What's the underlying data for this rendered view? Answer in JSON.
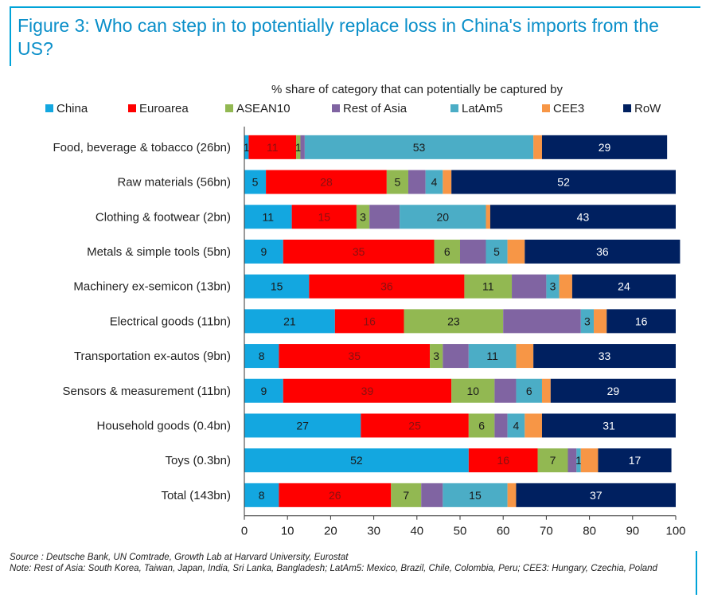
{
  "title": "Figure 3: Who can step in to potentially replace loss in China's imports from the US?",
  "source": "Source : Deutsche Bank, UN Comtrade, Growth Lab at Harvard University, Eurostat",
  "note": "Note: Rest of Asia: South Korea, Taiwan, Japan, India, Sri Lanka, Bangladesh; LatAm5: Mexico, Brazil, Chile, Colombia, Peru; CEE3: Hungary, Czechia, Poland",
  "chart_data": {
    "type": "bar",
    "orientation": "horizontal",
    "stacked": true,
    "subtitle": "% share of category that can potentially be captured by",
    "legend_position": "top",
    "xlim": [
      0,
      100
    ],
    "xticks": [
      0,
      10,
      20,
      30,
      40,
      50,
      60,
      70,
      80,
      90,
      100
    ],
    "grid": false,
    "categories": [
      "Food, beverage & tobacco (26bn)",
      "Raw materials (56bn)",
      "Clothing & footwear (2bn)",
      "Metals & simple tools (5bn)",
      "Machinery ex-semicon (13bn)",
      "Electrical goods (11bn)",
      "Transportation ex-autos (9bn)",
      "Sensors & measurement (11bn)",
      "Household goods (0.4bn)",
      "Toys (0.3bn)",
      "Total (143bn)"
    ],
    "series": [
      {
        "name": "China",
        "color": "#13a7e0",
        "values": [
          1,
          5,
          11,
          9,
          15,
          21,
          8,
          9,
          27,
          52,
          8
        ]
      },
      {
        "name": "Euroarea",
        "color": "#ff0000",
        "values": [
          11,
          28,
          15,
          35,
          36,
          16,
          35,
          39,
          25,
          16,
          26
        ]
      },
      {
        "name": "ASEAN10",
        "color": "#92b852",
        "values": [
          1,
          5,
          3,
          6,
          11,
          23,
          3,
          10,
          6,
          7,
          7
        ]
      },
      {
        "name": "Rest of Asia",
        "color": "#8064a2",
        "values": [
          1,
          4,
          7,
          6,
          8,
          18,
          6,
          5,
          3,
          2,
          5
        ]
      },
      {
        "name": "LatAm5",
        "color": "#4badc6",
        "values": [
          53,
          4,
          20,
          5,
          3,
          3,
          11,
          6,
          4,
          1,
          15
        ]
      },
      {
        "name": "CEE3",
        "color": "#f79646",
        "values": [
          2,
          2,
          1,
          4,
          3,
          3,
          4,
          2,
          4,
          4,
          2
        ]
      },
      {
        "name": "RoW",
        "color": "#002060",
        "values": [
          29,
          52,
          43,
          36,
          24,
          16,
          33,
          29,
          31,
          17,
          37
        ]
      }
    ],
    "data_labels": [
      [
        "1",
        "11",
        "1",
        "",
        "53",
        "",
        "29"
      ],
      [
        "5",
        "28",
        "5",
        "",
        "4",
        "",
        "52"
      ],
      [
        "11",
        "15",
        "3",
        "",
        "20",
        "",
        "43"
      ],
      [
        "9",
        "35",
        "6",
        "",
        "5",
        "",
        "36"
      ],
      [
        "15",
        "36",
        "11",
        "",
        "3",
        "",
        "24"
      ],
      [
        "21",
        "16",
        "23",
        "",
        "3",
        "",
        "16"
      ],
      [
        "8",
        "35",
        "3",
        "",
        "11",
        "",
        "33"
      ],
      [
        "9",
        "39",
        "10",
        "",
        "6",
        "",
        "29"
      ],
      [
        "27",
        "25",
        "6",
        "",
        "4",
        "",
        "31"
      ],
      [
        "52",
        "16",
        "7",
        "",
        "1",
        "",
        "17"
      ],
      [
        "8",
        "26",
        "7",
        "",
        "15",
        "",
        "37"
      ]
    ]
  }
}
